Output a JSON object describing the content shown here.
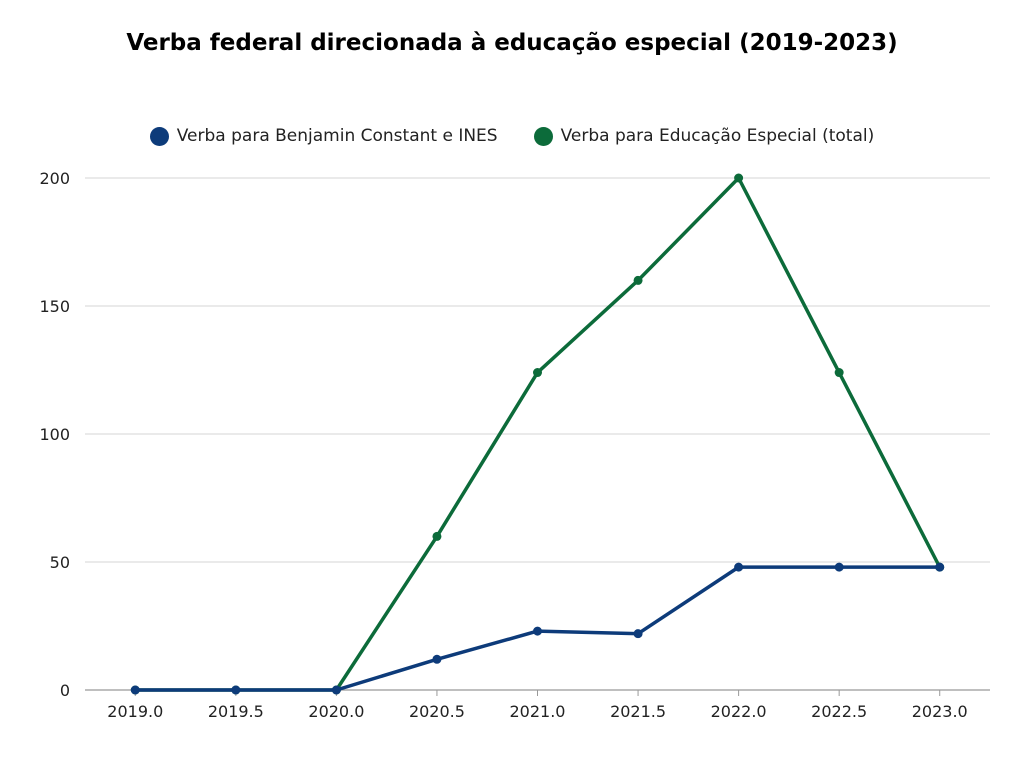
{
  "chart_data": {
    "type": "line",
    "title": "Verba federal direcionada à educação especial (2019-2023)",
    "xlabel": "",
    "ylabel": "",
    "x": [
      2019.0,
      2019.5,
      2020.0,
      2020.5,
      2021.0,
      2021.5,
      2022.0,
      2022.5,
      2023.0
    ],
    "x_tick_labels": [
      "2019.0",
      "2019.5",
      "2020.0",
      "2020.5",
      "2021.0",
      "2021.5",
      "2022.0",
      "2022.5",
      "2023.0"
    ],
    "xlim": [
      2018.75,
      2023.25
    ],
    "ylim": [
      0,
      200
    ],
    "y_ticks": [
      0,
      50,
      100,
      150,
      200
    ],
    "y_tick_labels": [
      "0",
      "50",
      "100",
      "150",
      "200"
    ],
    "grid": true,
    "legend_position": "top-center",
    "series": [
      {
        "name": "Verba para Benjamin Constant e INES",
        "color": "#0d3b7a",
        "values": [
          0,
          0,
          0,
          12,
          23,
          22,
          48,
          48,
          48
        ]
      },
      {
        "name": "Verba para Educação Especial (total)",
        "color": "#0c6b3a",
        "values": [
          0,
          0,
          0,
          60,
          124,
          160,
          200,
          124,
          48
        ]
      }
    ]
  }
}
